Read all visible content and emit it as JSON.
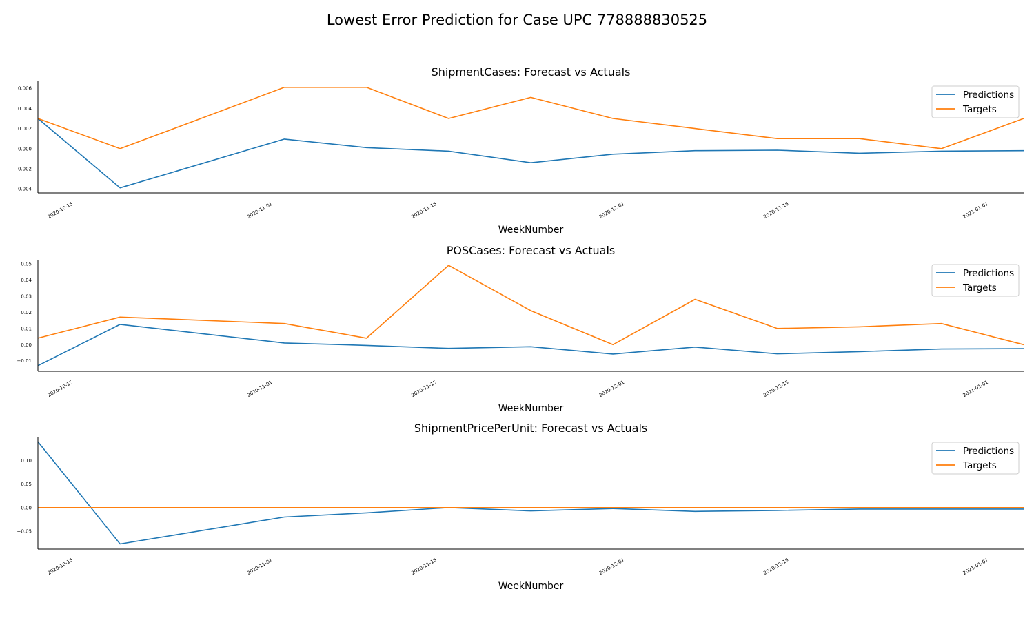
{
  "title": "Lowest Error Prediction for Case UPC 778888830525",
  "colors": {
    "predictions": "#1f77b4",
    "targets": "#ff7f0e"
  },
  "chart_data": [
    {
      "type": "line",
      "title": "ShipmentCases: Forecast vs Actuals",
      "xlabel": "WeekNumber",
      "ylabel": "",
      "x": [
        "2020-10-12",
        "2020-10-19",
        "2020-11-02",
        "2020-11-09",
        "2020-11-16",
        "2020-11-23",
        "2020-11-30",
        "2020-12-07",
        "2020-12-14",
        "2020-12-21",
        "2020-12-28",
        "2021-01-04"
      ],
      "xlim": [
        "2020-10-12",
        "2021-01-04"
      ],
      "xticks": [
        "2020-10-15",
        "2020-11-01",
        "2020-11-15",
        "2020-12-01",
        "2020-12-15",
        "2021-01-01"
      ],
      "ylim": [
        -0.0044,
        0.0067
      ],
      "yticks": [
        "−0.004",
        "−0.002",
        "0.000",
        "0.002",
        "0.004",
        "0.006"
      ],
      "legend": "upper right",
      "series": [
        {
          "name": "Predictions",
          "values": [
            0.003,
            -0.0039,
            0.00095,
            0.0001,
            -0.00025,
            -0.0014,
            -0.00055,
            -0.0002,
            -0.00015,
            -0.00045,
            -0.00025,
            -0.0002
          ]
        },
        {
          "name": "Targets",
          "values": [
            0.003,
            0.0,
            0.0061,
            0.0061,
            0.003,
            0.0051,
            0.003,
            0.002,
            0.001,
            0.001,
            0.0,
            0.003
          ]
        }
      ]
    },
    {
      "type": "line",
      "title": "POSCases: Forecast vs Actuals",
      "xlabel": "WeekNumber",
      "ylabel": "",
      "x": [
        "2020-10-12",
        "2020-10-19",
        "2020-11-02",
        "2020-11-09",
        "2020-11-16",
        "2020-11-23",
        "2020-11-30",
        "2020-12-07",
        "2020-12-14",
        "2020-12-21",
        "2020-12-28",
        "2021-01-04"
      ],
      "xlim": [
        "2020-10-12",
        "2021-01-04"
      ],
      "xticks": [
        "2020-10-15",
        "2020-11-01",
        "2020-11-15",
        "2020-12-01",
        "2020-12-15",
        "2021-01-01"
      ],
      "ylim": [
        -0.0165,
        0.0525
      ],
      "yticks": [
        "−0.01",
        "0.00",
        "0.01",
        "0.02",
        "0.03",
        "0.04",
        "0.05"
      ],
      "legend": "upper right",
      "series": [
        {
          "name": "Predictions",
          "values": [
            -0.013,
            0.0125,
            0.001,
            -0.0005,
            -0.0023,
            -0.0013,
            -0.0058,
            -0.0015,
            -0.0057,
            -0.0043,
            -0.0027,
            -0.0025
          ]
        },
        {
          "name": "Targets",
          "values": [
            0.004,
            0.017,
            0.013,
            0.004,
            0.049,
            0.021,
            0.0,
            0.028,
            0.01,
            0.011,
            0.013,
            0.0
          ]
        }
      ]
    },
    {
      "type": "line",
      "title": "ShipmentPricePerUnit: Forecast vs Actuals",
      "xlabel": "WeekNumber",
      "ylabel": "",
      "x": [
        "2020-10-12",
        "2020-10-19",
        "2020-11-02",
        "2020-11-09",
        "2020-11-16",
        "2020-11-23",
        "2020-11-30",
        "2020-12-07",
        "2020-12-14",
        "2020-12-21",
        "2020-12-28",
        "2021-01-04"
      ],
      "xlim": [
        "2020-10-12",
        "2021-01-04"
      ],
      "xticks": [
        "2020-10-15",
        "2020-11-01",
        "2020-11-15",
        "2020-12-01",
        "2020-12-15",
        "2021-01-01"
      ],
      "ylim": [
        -0.088,
        0.149
      ],
      "yticks": [
        "−0.05",
        "0.00",
        "0.05",
        "0.10"
      ],
      "legend": "upper right",
      "series": [
        {
          "name": "Predictions",
          "values": [
            0.14,
            -0.077,
            -0.02,
            -0.011,
            0.0,
            -0.007,
            -0.002,
            -0.008,
            -0.006,
            -0.003,
            -0.003,
            -0.003
          ]
        },
        {
          "name": "Targets",
          "values": [
            0.0,
            0.0,
            0.0,
            0.0,
            0.0,
            0.0,
            0.0,
            0.0,
            0.0,
            0.0,
            0.0,
            0.0
          ]
        }
      ]
    }
  ]
}
